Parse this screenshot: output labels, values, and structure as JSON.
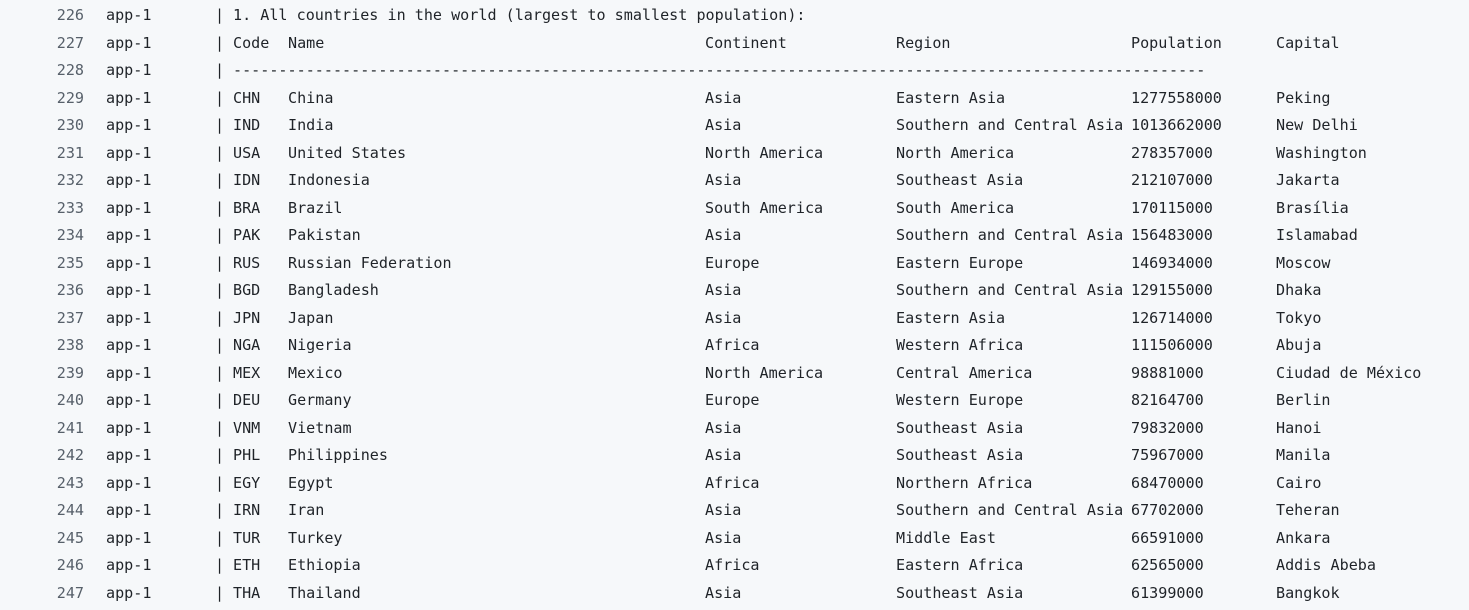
{
  "log": {
    "service": "app-1",
    "separator": "|",
    "title_line": {
      "line_no": "226",
      "text": "1. All countries in the world (largest to smallest population):"
    },
    "header_line": {
      "line_no": "227",
      "columns": [
        "Code",
        "Name",
        "Continent",
        "Region",
        "Population",
        "Capital"
      ]
    },
    "dash_line": {
      "line_no": "228",
      "text": "-----------------------------------------------------------------------------------------------------------"
    },
    "rows": [
      {
        "line_no": "229",
        "code": "CHN",
        "name": "China",
        "continent": "Asia",
        "region": "Eastern Asia",
        "population": "1277558000",
        "capital": "Peking"
      },
      {
        "line_no": "230",
        "code": "IND",
        "name": "India",
        "continent": "Asia",
        "region": "Southern and Central Asia",
        "population": "1013662000",
        "capital": "New Delhi"
      },
      {
        "line_no": "231",
        "code": "USA",
        "name": "United States",
        "continent": "North America",
        "region": "North America",
        "population": "278357000",
        "capital": "Washington"
      },
      {
        "line_no": "232",
        "code": "IDN",
        "name": "Indonesia",
        "continent": "Asia",
        "region": "Southeast Asia",
        "population": "212107000",
        "capital": "Jakarta"
      },
      {
        "line_no": "233",
        "code": "BRA",
        "name": "Brazil",
        "continent": "South America",
        "region": "South America",
        "population": "170115000",
        "capital": "Brasília"
      },
      {
        "line_no": "234",
        "code": "PAK",
        "name": "Pakistan",
        "continent": "Asia",
        "region": "Southern and Central Asia",
        "population": "156483000",
        "capital": "Islamabad"
      },
      {
        "line_no": "235",
        "code": "RUS",
        "name": "Russian Federation",
        "continent": "Europe",
        "region": "Eastern Europe",
        "population": "146934000",
        "capital": "Moscow"
      },
      {
        "line_no": "236",
        "code": "BGD",
        "name": "Bangladesh",
        "continent": "Asia",
        "region": "Southern and Central Asia",
        "population": "129155000",
        "capital": "Dhaka"
      },
      {
        "line_no": "237",
        "code": "JPN",
        "name": "Japan",
        "continent": "Asia",
        "region": "Eastern Asia",
        "population": "126714000",
        "capital": "Tokyo"
      },
      {
        "line_no": "238",
        "code": "NGA",
        "name": "Nigeria",
        "continent": "Africa",
        "region": "Western Africa",
        "population": "111506000",
        "capital": "Abuja"
      },
      {
        "line_no": "239",
        "code": "MEX",
        "name": "Mexico",
        "continent": "North America",
        "region": "Central America",
        "population": "98881000",
        "capital": "Ciudad de México"
      },
      {
        "line_no": "240",
        "code": "DEU",
        "name": "Germany",
        "continent": "Europe",
        "region": "Western Europe",
        "population": "82164700",
        "capital": "Berlin"
      },
      {
        "line_no": "241",
        "code": "VNM",
        "name": "Vietnam",
        "continent": "Asia",
        "region": "Southeast Asia",
        "population": "79832000",
        "capital": "Hanoi"
      },
      {
        "line_no": "242",
        "code": "PHL",
        "name": "Philippines",
        "continent": "Asia",
        "region": "Southeast Asia",
        "population": "75967000",
        "capital": "Manila"
      },
      {
        "line_no": "243",
        "code": "EGY",
        "name": "Egypt",
        "continent": "Africa",
        "region": "Northern Africa",
        "population": "68470000",
        "capital": "Cairo"
      },
      {
        "line_no": "244",
        "code": "IRN",
        "name": "Iran",
        "continent": "Asia",
        "region": "Southern and Central Asia",
        "population": "67702000",
        "capital": "Teheran"
      },
      {
        "line_no": "245",
        "code": "TUR",
        "name": "Turkey",
        "continent": "Asia",
        "region": "Middle East",
        "population": "66591000",
        "capital": "Ankara"
      },
      {
        "line_no": "246",
        "code": "ETH",
        "name": "Ethiopia",
        "continent": "Africa",
        "region": "Eastern Africa",
        "population": "62565000",
        "capital": "Addis Abeba"
      },
      {
        "line_no": "247",
        "code": "THA",
        "name": "Thailand",
        "continent": "Asia",
        "region": "Southeast Asia",
        "population": "61399000",
        "capital": "Bangkok"
      }
    ]
  }
}
